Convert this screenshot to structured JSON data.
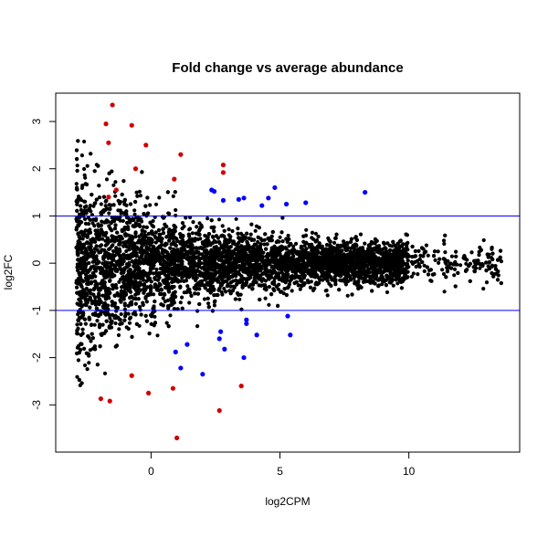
{
  "chart_data": {
    "type": "scatter",
    "title": "Fold change vs average abundance",
    "xlabel": "log2CPM",
    "ylabel": "log2FC",
    "xlim": [
      -3.7,
      14.3
    ],
    "ylim": [
      -4.0,
      3.6
    ],
    "x_ticks": [
      0,
      5,
      10
    ],
    "x_tick_labels": [
      "0",
      "5",
      "10"
    ],
    "y_ticks": [
      -3,
      -2,
      -1,
      0,
      1,
      2,
      3
    ],
    "y_tick_labels": [
      "-3",
      "-2",
      "-1",
      "0",
      "1",
      "2",
      "3"
    ],
    "threshold_lines": [
      1,
      -1
    ],
    "grid": false,
    "legend": "none",
    "colors": {
      "not_significant": "#000000",
      "significant_abundant": "#0000ff",
      "significant_large_fc": "#d00000",
      "threshold_line": "#0000ff"
    },
    "series": [
      {
        "color": "#d00000",
        "x": [
          -1.5,
          -1.75,
          -0.75,
          -1.65,
          -0.2,
          -0.6,
          1.15,
          2.8,
          2.8,
          0.9,
          -1.35,
          -1.65,
          -0.75,
          -0.1,
          0.85,
          3.5,
          2.65,
          1.0,
          -1.95,
          -1.6
        ],
        "y": [
          3.35,
          2.95,
          2.92,
          2.55,
          2.5,
          2.0,
          2.3,
          2.08,
          1.92,
          1.78,
          1.55,
          1.4,
          -2.38,
          -2.75,
          -2.65,
          -2.6,
          -3.12,
          -3.7,
          -2.87,
          -2.92
        ]
      },
      {
        "color": "#0000ff",
        "x": [
          2.35,
          2.45,
          2.8,
          3.4,
          3.6,
          4.55,
          4.8,
          6.0,
          8.3,
          4.3,
          5.25,
          3.7,
          3.7,
          4.1,
          2.7,
          2.65,
          2.85,
          3.6,
          1.4,
          0.95,
          1.15,
          2.0,
          5.4,
          5.3
        ],
        "y": [
          1.55,
          1.52,
          1.33,
          1.35,
          1.38,
          1.38,
          1.6,
          1.28,
          1.5,
          1.22,
          1.25,
          -1.2,
          -1.28,
          -1.52,
          -1.45,
          -1.6,
          -1.82,
          -2.0,
          -1.72,
          -1.88,
          -2.22,
          -2.35,
          -1.52,
          -1.12
        ]
      }
    ],
    "background_cloud": {
      "color": "#000000",
      "description_free": true,
      "count": 6000,
      "x_range": [
        -2.9,
        13.6
      ],
      "y_center": 0.0
    }
  }
}
